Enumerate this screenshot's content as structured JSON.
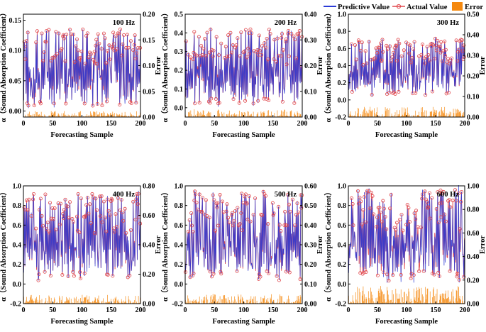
{
  "legend": {
    "items": [
      {
        "label": "Predictive Value",
        "color": "#2b3bd6",
        "kind": "line"
      },
      {
        "label": "Actual Value",
        "color": "#e0474c",
        "kind": "line-marker"
      },
      {
        "label": "Error",
        "color": "#f5890f",
        "kind": "bar"
      }
    ]
  },
  "chart_data": [
    {
      "type": "line",
      "title": "100 Hz",
      "xlabel": "Forecasting Sample",
      "ylabel": "α（Sound Absorption Coefficient）",
      "y2label": "Error",
      "xlim": [
        0,
        200
      ],
      "xticks": [
        "0",
        "50",
        "100",
        "150",
        "200"
      ],
      "ylim": [
        -0.01,
        0.16
      ],
      "yticks": [
        "0.00",
        "0.05",
        "0.10",
        "0.15"
      ],
      "ytick_values": [
        0,
        0.05,
        0.1,
        0.15
      ],
      "y2lim": [
        0,
        0.2
      ],
      "y2ticks": [
        "0.00",
        "0.05",
        "0.10",
        "0.15",
        "0.20"
      ],
      "y2tick_values": [
        0,
        0.05,
        0.1,
        0.15,
        0.2
      ],
      "n_samples": 200,
      "actual_range": [
        0.0,
        0.135
      ],
      "error_max": 0.012,
      "seed": 11
    },
    {
      "type": "line",
      "title": "200 Hz",
      "xlabel": "Forecasting Sample",
      "ylabel": "α（Sound Absorption Coefficient）",
      "y2label": "Error",
      "xlim": [
        0,
        200
      ],
      "xticks": [
        "0",
        "50",
        "100",
        "150",
        "200"
      ],
      "ylim": [
        -0.05,
        0.5
      ],
      "yticks": [
        "0.0",
        "0.1",
        "0.2",
        "0.3",
        "0.4",
        "0.5"
      ],
      "ytick_values": [
        0,
        0.1,
        0.2,
        0.3,
        0.4,
        0.5
      ],
      "y2lim": [
        0,
        0.4
      ],
      "y2ticks": [
        "0.00",
        "0.10",
        "0.20",
        "0.30",
        "0.40"
      ],
      "y2tick_values": [
        0,
        0.1,
        0.2,
        0.3,
        0.4
      ],
      "n_samples": 200,
      "actual_range": [
        0.0,
        0.42
      ],
      "error_max": 0.03,
      "seed": 23
    },
    {
      "type": "line",
      "title": "300 Hz",
      "xlabel": "Forecasting Sample",
      "ylabel": "α（Sound Absorption Coefficient）",
      "y2label": "Error",
      "xlim": [
        0,
        200
      ],
      "xticks": [
        "0",
        "50",
        "100",
        "150",
        "200"
      ],
      "ylim": [
        -0.2,
        1.0
      ],
      "yticks": [
        "-0.2",
        "0.0",
        "0.2",
        "0.4",
        "0.6",
        "0.8",
        "1.0"
      ],
      "ytick_values": [
        -0.2,
        0,
        0.2,
        0.4,
        0.6,
        0.8,
        1.0
      ],
      "y2lim": [
        0,
        0.5
      ],
      "y2ticks": [
        "0.00",
        "0.10",
        "0.20",
        "0.30",
        "0.40",
        "0.50"
      ],
      "y2tick_values": [
        0,
        0.1,
        0.2,
        0.3,
        0.4,
        0.5
      ],
      "n_samples": 200,
      "actual_range": [
        0.02,
        0.72
      ],
      "error_max": 0.05,
      "seed": 37
    },
    {
      "type": "line",
      "title": "400 Hz",
      "xlabel": "Forecasting Sample",
      "ylabel": "α（Sound Absorption Coefficient）",
      "y2label": "Error",
      "xlim": [
        0,
        200
      ],
      "xticks": [
        "0",
        "50",
        "100",
        "150",
        "200"
      ],
      "ylim": [
        -0.2,
        1.0
      ],
      "yticks": [
        "-0.2",
        "0.0",
        "0.2",
        "0.4",
        "0.6",
        "0.8",
        "1.0"
      ],
      "ytick_values": [
        -0.2,
        0,
        0.2,
        0.4,
        0.6,
        0.8,
        1.0
      ],
      "y2lim": [
        0,
        0.8
      ],
      "y2ticks": [
        "0.00",
        "0.20",
        "0.40",
        "0.60",
        "0.80"
      ],
      "y2tick_values": [
        0,
        0.2,
        0.4,
        0.6,
        0.8
      ],
      "n_samples": 200,
      "actual_range": [
        0.02,
        0.92
      ],
      "error_max": 0.06,
      "seed": 41
    },
    {
      "type": "line",
      "title": "500 Hz",
      "xlabel": "Forecasting Sample",
      "ylabel": "α（Sound Absorption Coefficient）",
      "y2label": "Error",
      "xlim": [
        0,
        200
      ],
      "xticks": [
        "0",
        "50",
        "100",
        "150",
        "200"
      ],
      "ylim": [
        -0.2,
        1.0
      ],
      "yticks": [
        "-0.2",
        "0.0",
        "0.2",
        "0.4",
        "0.6",
        "0.8",
        "1.0"
      ],
      "ytick_values": [
        -0.2,
        0,
        0.2,
        0.4,
        0.6,
        0.8,
        1.0
      ],
      "y2lim": [
        0,
        0.6
      ],
      "y2ticks": [
        "0.00",
        "0.10",
        "0.20",
        "0.30",
        "0.40",
        "0.50",
        "0.60"
      ],
      "y2tick_values": [
        0,
        0.1,
        0.2,
        0.3,
        0.4,
        0.5,
        0.6
      ],
      "n_samples": 200,
      "actual_range": [
        0.02,
        0.95
      ],
      "error_max": 0.05,
      "seed": 53
    },
    {
      "type": "line",
      "title": "600 Hz",
      "xlabel": "Forecasting Sample",
      "ylabel": "α（Sound Absorption Coefficient）",
      "y2label": "Error",
      "xlim": [
        0,
        200
      ],
      "xticks": [
        "0",
        "50",
        "100",
        "150",
        "200"
      ],
      "ylim": [
        -0.2,
        1.0
      ],
      "yticks": [
        "-0.2",
        "0.0",
        "0.2",
        "0.4",
        "0.6",
        "0.8",
        "1.0"
      ],
      "ytick_values": [
        -0.2,
        0,
        0.2,
        0.4,
        0.6,
        0.8,
        1.0
      ],
      "y2lim": [
        0,
        1.0
      ],
      "y2ticks": [
        "0.00",
        "0.20",
        "0.40",
        "0.60",
        "0.80",
        "1.00"
      ],
      "y2tick_values": [
        0,
        0.2,
        0.4,
        0.6,
        0.8,
        1.0
      ],
      "n_samples": 200,
      "actual_range": [
        0.02,
        0.96
      ],
      "error_max": 0.15,
      "seed": 67
    }
  ]
}
